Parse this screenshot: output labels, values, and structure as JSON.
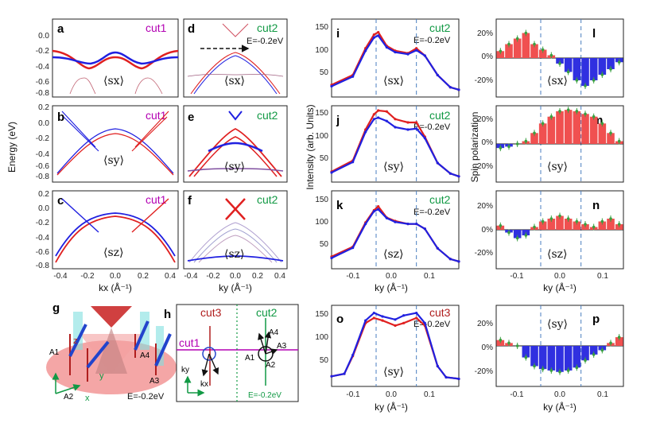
{
  "panels": {
    "a": {
      "label": "a",
      "cut": "cut1",
      "op": "⟨sx⟩"
    },
    "b": {
      "label": "b",
      "cut": "cut1",
      "op": "⟨sy⟩"
    },
    "c": {
      "label": "c",
      "cut": "cut1",
      "op": "⟨sz⟩"
    },
    "d": {
      "label": "d",
      "cut": "cut2",
      "ev": "E=-0.2eV",
      "op": "⟨sx⟩"
    },
    "e": {
      "label": "e",
      "cut": "cut2",
      "op": "⟨sy⟩"
    },
    "f": {
      "label": "f",
      "cut": "cut2",
      "op": "⟨sz⟩"
    },
    "i": {
      "label": "i",
      "cut": "cut2",
      "ev": "E=-0.2eV",
      "op": "⟨sx⟩"
    },
    "j": {
      "label": "j",
      "cut": "cut2",
      "ev": "E=-0.2eV",
      "op": "⟨sy⟩"
    },
    "k": {
      "label": "k",
      "cut": "cut2",
      "ev": "E=-0.2eV",
      "op": "⟨sz⟩"
    },
    "o": {
      "label": "o",
      "cut": "cut3",
      "ev": "E=-0.2eV",
      "op": "⟨sy⟩"
    },
    "l": {
      "label": "l",
      "op": "⟨sx⟩"
    },
    "m": {
      "label": "m",
      "op": "⟨sy⟩"
    },
    "n": {
      "label": "n",
      "op": "⟨sz⟩"
    },
    "p": {
      "label": "p",
      "op": "⟨sy⟩"
    },
    "g": {
      "label": "g",
      "ev": "E=-0.2eV",
      "z": "z",
      "x": "x",
      "y": "y",
      "a1": "A1",
      "a2": "A2",
      "a3": "A3",
      "a4": "A4"
    },
    "h": {
      "label": "h",
      "cut1": "cut1",
      "cut2": "cut2",
      "cut3": "cut3",
      "ev": "E=-0.2eV",
      "a1": "A1",
      "a2": "A2",
      "a3": "A3",
      "a4": "A4",
      "ky": "ky",
      "kx": "kx"
    }
  },
  "axes": {
    "energy_label": "Energy (eV)",
    "intensity_label": "Intensity (arb. Units)",
    "spin_label": "Spin polarization",
    "kx_label": "kx (Å⁻¹)",
    "ky_label": "ky (Å⁻¹)",
    "energy_ticks": [
      "0.2",
      "0.0",
      "-0.2",
      "-0.4",
      "-0.6",
      "-0.8"
    ],
    "k_ticks": [
      "-0.4",
      "-0.2",
      "0.0",
      "0.2",
      "0.4"
    ],
    "int_ticks": [
      "150",
      "100",
      "50"
    ],
    "int_k_ticks": [
      "-0.1",
      "0.0",
      "0.1"
    ],
    "spin_ticks": [
      "20%",
      "0%",
      "-20%"
    ]
  },
  "chart_data": [
    {
      "type": "line",
      "panel": "i",
      "series": [
        {
          "name": "red",
          "x": [
            -0.15,
            -0.1,
            -0.07,
            -0.05,
            -0.04,
            -0.02,
            0.0,
            0.03,
            0.05,
            0.07,
            0.1,
            0.13,
            0.15
          ],
          "values": [
            25,
            45,
            100,
            128,
            133,
            105,
            95,
            90,
            100,
            85,
            45,
            20,
            15
          ]
        },
        {
          "name": "blue",
          "x": [
            -0.15,
            -0.1,
            -0.07,
            -0.05,
            -0.04,
            -0.02,
            0.0,
            0.03,
            0.05,
            0.07,
            0.1,
            0.13,
            0.15
          ],
          "values": [
            22,
            42,
            95,
            122,
            126,
            102,
            92,
            88,
            96,
            85,
            45,
            20,
            15
          ]
        }
      ]
    },
    {
      "type": "line",
      "panel": "j",
      "series": [
        {
          "name": "red",
          "x": [
            -0.15,
            -0.1,
            -0.07,
            -0.05,
            -0.04,
            -0.02,
            0.0,
            0.03,
            0.05,
            0.07,
            0.1,
            0.13,
            0.15
          ],
          "values": [
            22,
            45,
            110,
            142,
            150,
            148,
            132,
            125,
            125,
            95,
            40,
            18,
            12
          ]
        },
        {
          "name": "blue",
          "x": [
            -0.15,
            -0.1,
            -0.07,
            -0.05,
            -0.04,
            -0.02,
            0.0,
            0.03,
            0.05,
            0.07,
            0.1,
            0.13,
            0.15
          ],
          "values": [
            20,
            42,
            105,
            132,
            135,
            128,
            115,
            110,
            112,
            92,
            40,
            18,
            12
          ]
        }
      ]
    },
    {
      "type": "line",
      "panel": "k",
      "series": [
        {
          "name": "red",
          "x": [
            -0.15,
            -0.1,
            -0.07,
            -0.05,
            -0.04,
            -0.02,
            0.0,
            0.03,
            0.05,
            0.07,
            0.1,
            0.13,
            0.15
          ],
          "values": [
            25,
            45,
            95,
            120,
            128,
            105,
            98,
            92,
            92,
            82,
            42,
            20,
            15
          ]
        },
        {
          "name": "blue",
          "x": [
            -0.15,
            -0.1,
            -0.07,
            -0.05,
            -0.04,
            -0.02,
            0.0,
            0.03,
            0.05,
            0.07,
            0.1,
            0.13,
            0.15
          ],
          "values": [
            22,
            43,
            92,
            118,
            122,
            104,
            96,
            92,
            92,
            82,
            42,
            20,
            15
          ]
        }
      ]
    },
    {
      "type": "line",
      "panel": "o",
      "series": [
        {
          "name": "red",
          "x": [
            -0.15,
            -0.12,
            -0.1,
            -0.07,
            -0.05,
            -0.03,
            0.0,
            0.02,
            0.05,
            0.07,
            0.1,
            0.12,
            0.15
          ],
          "values": [
            20,
            25,
            60,
            125,
            135,
            130,
            120,
            125,
            135,
            120,
            40,
            18,
            15
          ]
        },
        {
          "name": "blue",
          "x": [
            -0.15,
            -0.12,
            -0.1,
            -0.07,
            -0.05,
            -0.03,
            0.0,
            0.02,
            0.05,
            0.07,
            0.1,
            0.12,
            0.15
          ],
          "values": [
            20,
            25,
            62,
            130,
            145,
            138,
            132,
            140,
            145,
            125,
            40,
            18,
            15
          ]
        }
      ]
    },
    {
      "type": "bar",
      "panel": "l",
      "x": [
        -0.14,
        -0.12,
        -0.1,
        -0.08,
        -0.06,
        -0.04,
        -0.02,
        0.0,
        0.02,
        0.04,
        0.06,
        0.08,
        0.1,
        0.12,
        0.14
      ],
      "values": [
        5,
        10,
        14,
        18,
        10,
        6,
        2,
        -4,
        -10,
        -16,
        -20,
        -16,
        -12,
        -8,
        -3
      ]
    },
    {
      "type": "bar",
      "panel": "m",
      "x": [
        -0.14,
        -0.12,
        -0.1,
        -0.08,
        -0.06,
        -0.04,
        -0.02,
        0.0,
        0.02,
        0.04,
        0.06,
        0.08,
        0.1,
        0.12,
        0.14
      ],
      "values": [
        -3,
        -2,
        0,
        2,
        8,
        15,
        20,
        24,
        25,
        24,
        22,
        20,
        15,
        8,
        2
      ]
    },
    {
      "type": "bar",
      "panel": "n",
      "x": [
        -0.14,
        -0.12,
        -0.1,
        -0.08,
        -0.06,
        -0.04,
        -0.02,
        0.0,
        0.02,
        0.04,
        0.06,
        0.08,
        0.1,
        0.12,
        0.14
      ],
      "values": [
        3,
        -2,
        -6,
        -4,
        2,
        6,
        8,
        10,
        8,
        6,
        4,
        2,
        6,
        8,
        4
      ]
    },
    {
      "type": "bar",
      "panel": "p",
      "x": [
        -0.14,
        -0.12,
        -0.1,
        -0.08,
        -0.06,
        -0.04,
        -0.02,
        0.0,
        0.02,
        0.04,
        0.06,
        0.08,
        0.1,
        0.12,
        0.14
      ],
      "values": [
        4,
        2,
        0,
        -8,
        -14,
        -16,
        -17,
        -18,
        -17,
        -15,
        -10,
        -6,
        -3,
        2,
        6
      ]
    }
  ]
}
